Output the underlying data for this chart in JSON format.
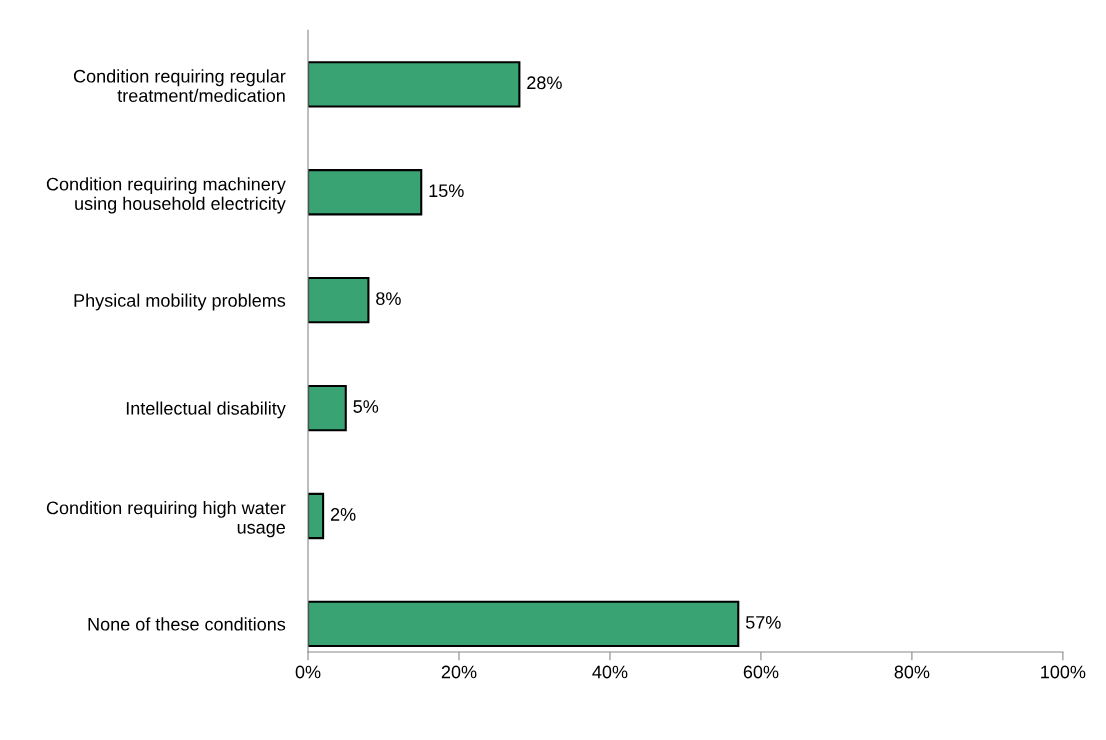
{
  "chart_data": {
    "type": "bar",
    "orientation": "horizontal",
    "categories": [
      "Condition requiring regular treatment/medication",
      "Condition requiring machinery using household electricity",
      "Physical mobility problems",
      "Intellectual disability",
      "Condition requiring high water usage",
      "None of these conditions"
    ],
    "values": [
      28,
      15,
      8,
      5,
      2,
      57
    ],
    "value_labels": [
      "28%",
      "15%",
      "8%",
      "5%",
      "2%",
      "57%"
    ],
    "color": "#3aa374",
    "xlim": [
      0,
      100
    ],
    "xticks": [
      {
        "value": 0,
        "label": "0%"
      },
      {
        "value": 20,
        "label": "20%"
      },
      {
        "value": 40,
        "label": "40%"
      },
      {
        "value": 60,
        "label": "60%"
      },
      {
        "value": 80,
        "label": "80%"
      },
      {
        "value": 100,
        "label": "100%"
      }
    ],
    "grid": false
  }
}
